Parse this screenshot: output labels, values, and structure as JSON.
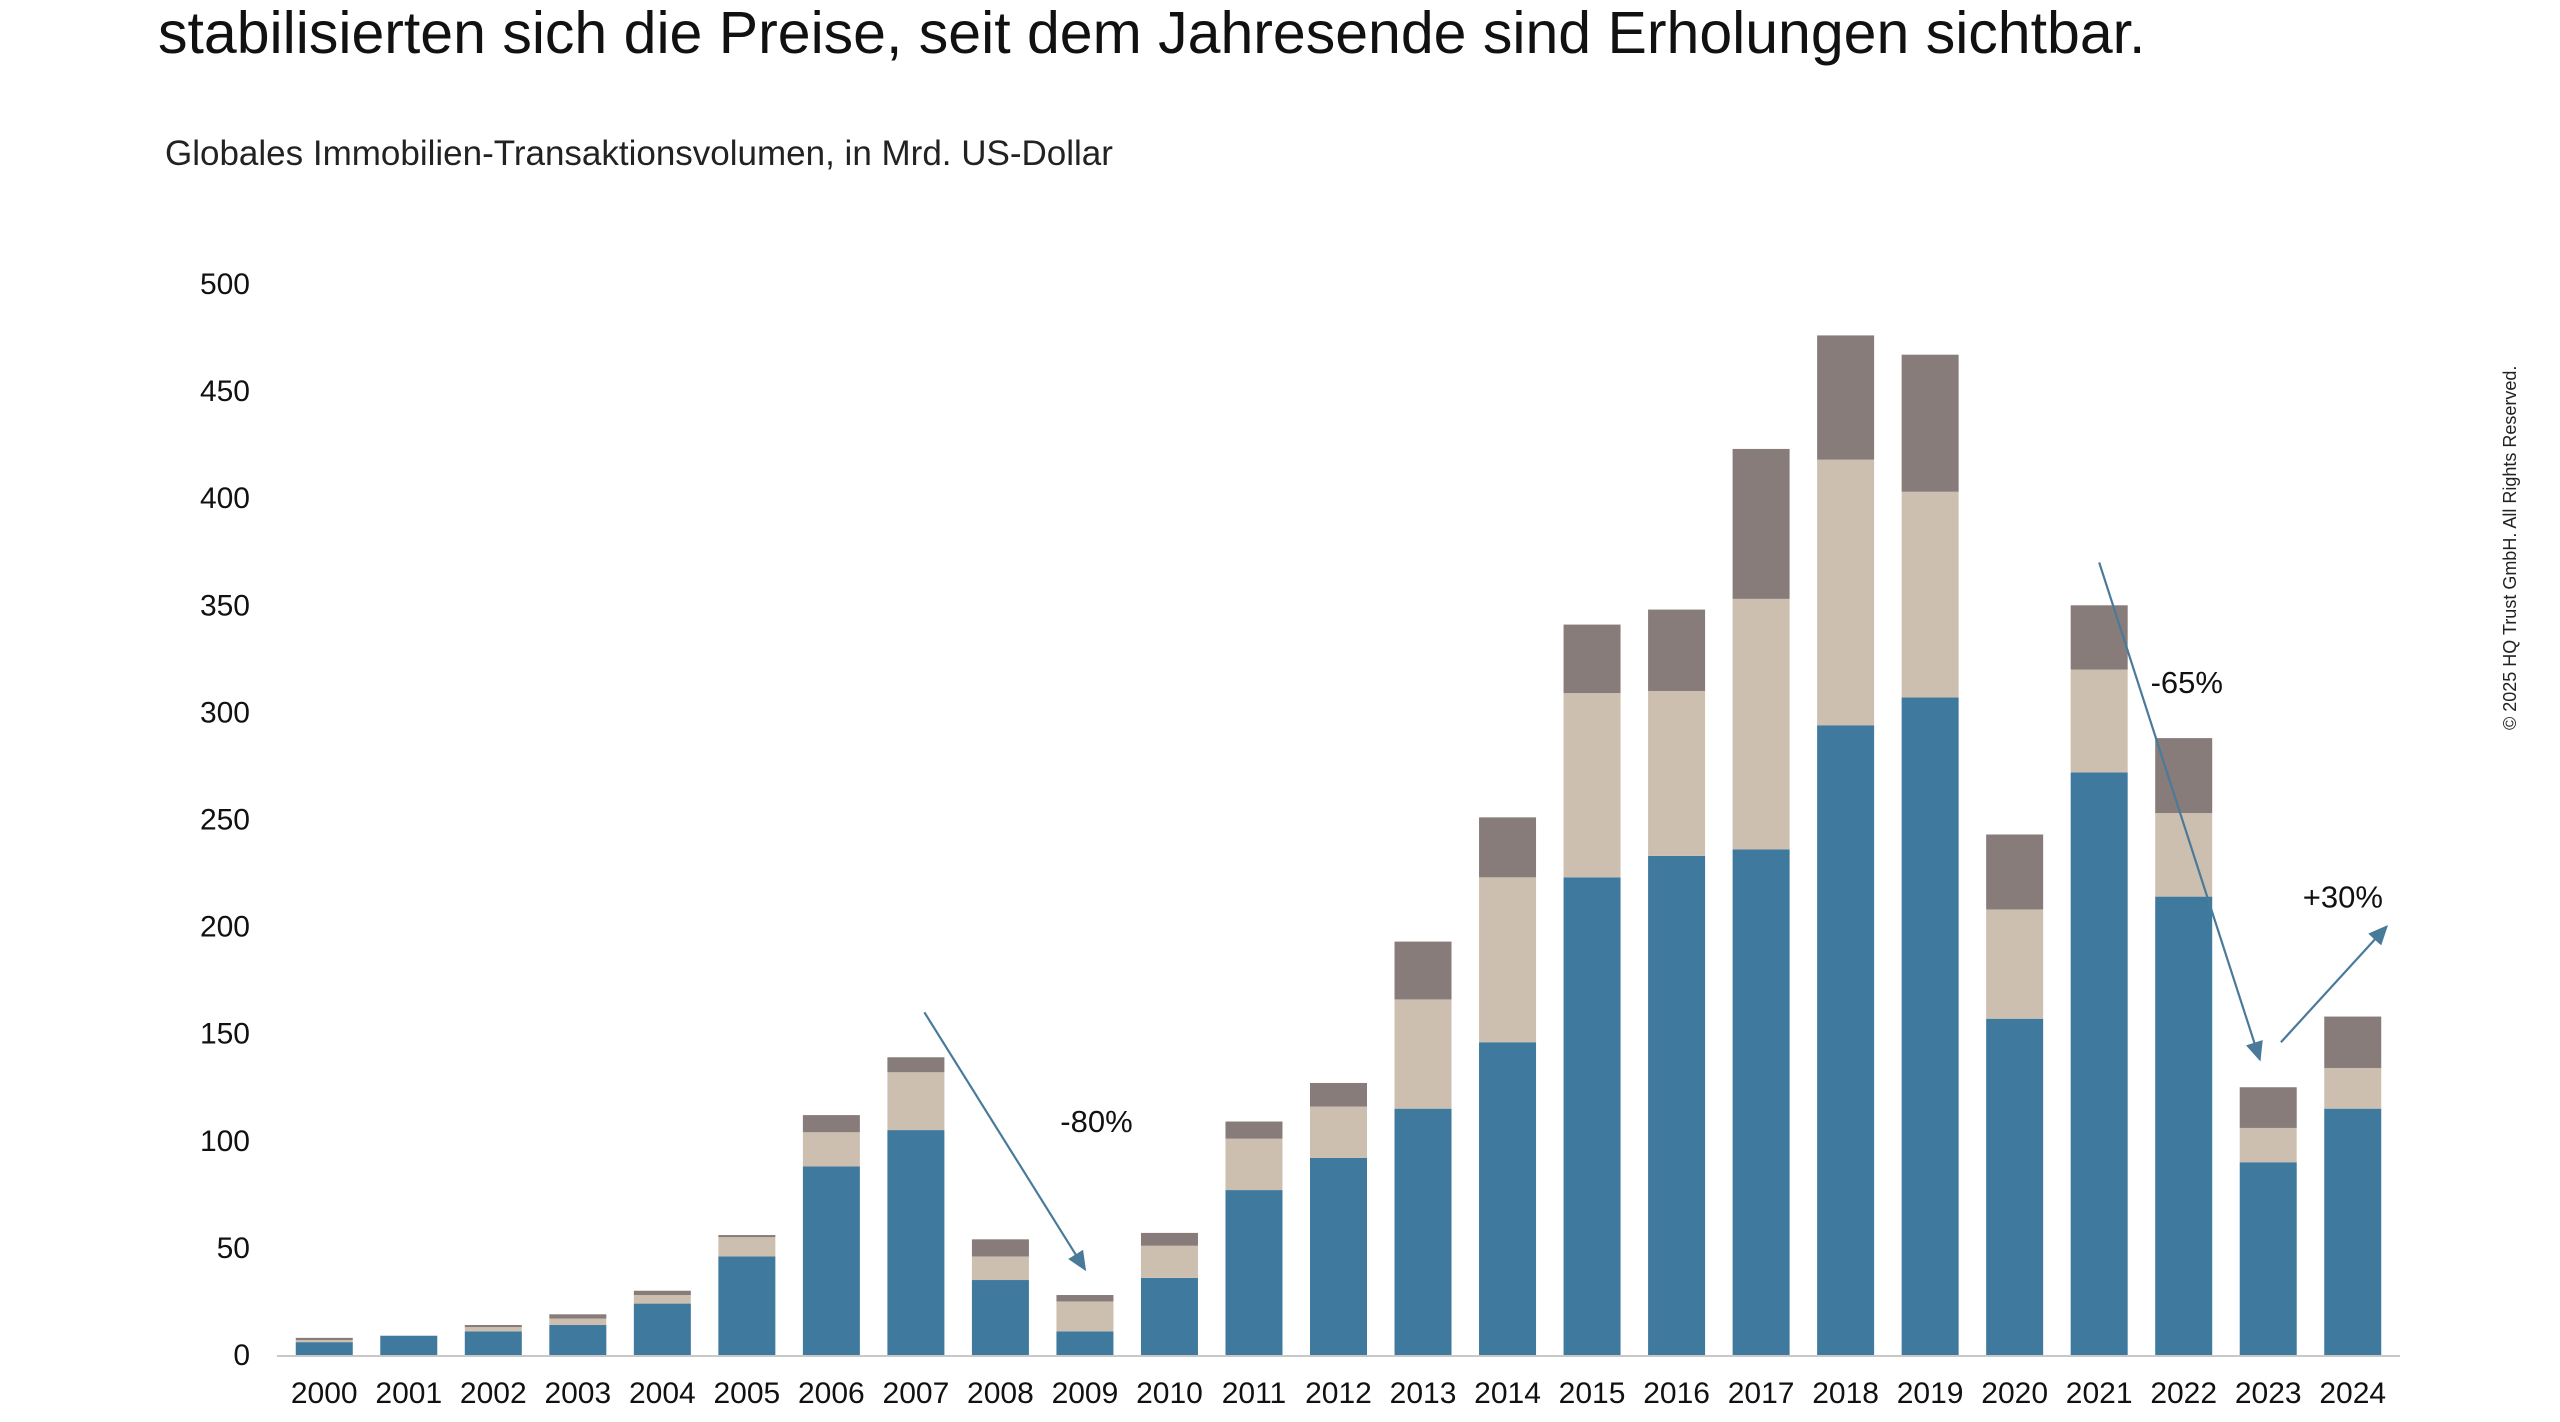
{
  "headline": "stabilisierten sich die Preise, seit dem Jahresende sind Erholungen sichtbar.",
  "copyright": "© 2025 HQ Trust GmbH. All Rights Reserved.",
  "colors": {
    "segment_bottom": "#3F799E",
    "segment_middle": "#CDBFB0",
    "segment_top": "#877C7A",
    "arrow": "#4A7A9A"
  },
  "chart_data": {
    "type": "bar",
    "stacked": true,
    "title": "Globales Immobilien-Transaktionsvolumen,  in Mrd. US-Dollar",
    "xlabel": "",
    "ylabel": "",
    "ylim": [
      0,
      500
    ],
    "yticks": [
      0,
      50,
      100,
      150,
      200,
      250,
      300,
      350,
      400,
      450,
      500
    ],
    "grid": false,
    "categories": [
      "2000",
      "2001",
      "2002",
      "2003",
      "2004",
      "2005",
      "2006",
      "2007",
      "2008",
      "2009",
      "2010",
      "2011",
      "2012",
      "2013",
      "2014",
      "2015",
      "2016",
      "2017",
      "2018",
      "2019",
      "2020",
      "2021",
      "2022",
      "2023",
      "2024"
    ],
    "series": [
      {
        "values": [
          6,
          9,
          11,
          14,
          24,
          46,
          88,
          105,
          35,
          11,
          36,
          77,
          92,
          115,
          146,
          223,
          233,
          236,
          294,
          307,
          157,
          272,
          214,
          90,
          115
        ]
      },
      {
        "values": [
          1,
          0,
          2,
          3,
          4,
          9,
          16,
          27,
          11,
          14,
          15,
          24,
          24,
          51,
          77,
          86,
          77,
          117,
          124,
          96,
          51,
          48,
          39,
          16,
          19
        ]
      },
      {
        "values": [
          1,
          0,
          1,
          2,
          2,
          1,
          8,
          7,
          8,
          3,
          6,
          8,
          11,
          27,
          28,
          32,
          38,
          70,
          58,
          64,
          35,
          30,
          35,
          19,
          24
        ]
      }
    ],
    "annotations": [
      {
        "text": "-80%"
      },
      {
        "text": "-65%"
      },
      {
        "text": "+30%"
      }
    ]
  }
}
